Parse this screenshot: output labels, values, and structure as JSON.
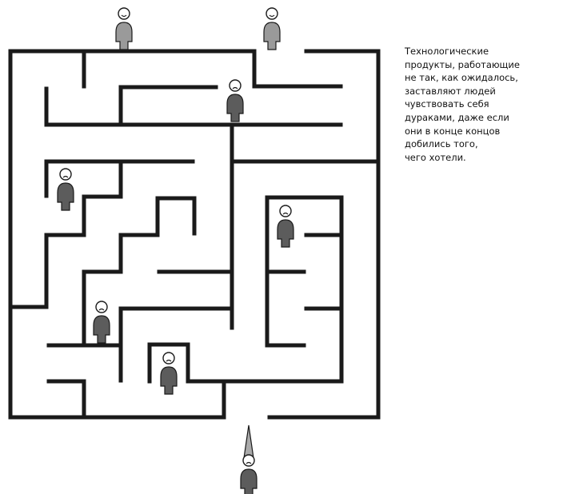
{
  "caption": {
    "lines": [
      "Технологические",
      "продукты, работающие",
      "не так, как ожидалось,",
      "заставляют людей",
      "чувствовать себя",
      "дураками, даже если",
      "они в конце концов",
      "добились того,",
      "чего хотели."
    ]
  },
  "colors": {
    "wall": "#1a1a1a",
    "figure_dark": "#5c5c5c",
    "figure_light": "#9a9a9a",
    "hat": "#aaaaaa"
  },
  "icons": {
    "figure_happy": "person-happy-icon",
    "figure_sad": "person-sad-icon",
    "figure_hat": "person-with-hat-icon"
  }
}
